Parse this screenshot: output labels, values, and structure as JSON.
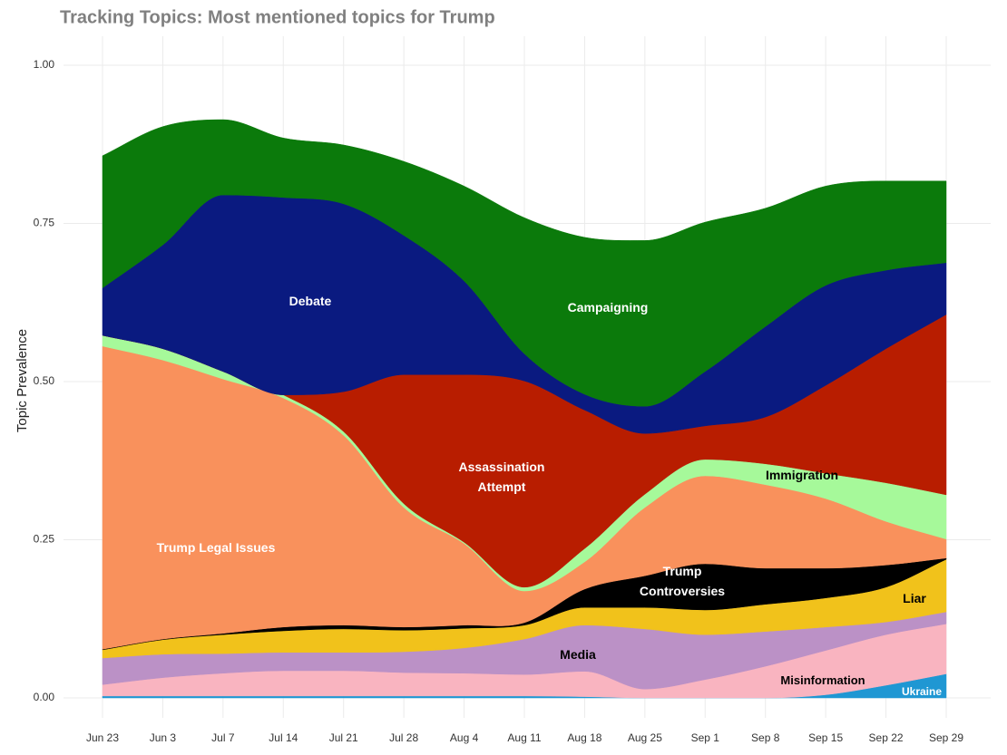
{
  "chart_data": {
    "type": "stacked-area",
    "title": "Tracking Topics: Most mentioned topics for Trump",
    "y_label": "Topic Prevalence",
    "categories": [
      "Jun 23",
      "Jun 3",
      "Jul 7",
      "Jul 14",
      "Jul 21",
      "Jul 28",
      "Aug 4",
      "Aug 11",
      "Aug 18",
      "Aug 25",
      "Sep 1",
      "Sep 8",
      "Sep 15",
      "Sep 22",
      "Sep 29"
    ],
    "ylim": [
      0,
      1
    ],
    "yticks": [
      {
        "value": 0,
        "label": "0.00"
      },
      {
        "value": 0.25,
        "label": "0.25"
      },
      {
        "value": 0.5,
        "label": "0.50"
      },
      {
        "value": 0.75,
        "label": "0.75"
      },
      {
        "value": 1,
        "label": "1.00"
      }
    ],
    "grid": true,
    "series": [
      {
        "name": "Ukraine",
        "color": "#1f97d3",
        "values": [
          0.003,
          0.003,
          0.003,
          0.003,
          0.003,
          0.003,
          0.003,
          0.003,
          0.002,
          0,
          0,
          0,
          0.005,
          0.02,
          0.038
        ]
      },
      {
        "name": "Misinformation",
        "color": "#f9b4c0",
        "values": [
          0.018,
          0.029,
          0.036,
          0.04,
          0.04,
          0.037,
          0.036,
          0.034,
          0.04,
          0.014,
          0.029,
          0.05,
          0.07,
          0.08,
          0.079
        ]
      },
      {
        "name": "Media",
        "color": "#bb91c6",
        "values": [
          0.042,
          0.037,
          0.031,
          0.029,
          0.029,
          0.033,
          0.04,
          0.056,
          0.073,
          0.095,
          0.071,
          0.055,
          0.037,
          0.02,
          0.019
        ]
      },
      {
        "name": "Liar",
        "color": "#f1c21b",
        "values": [
          0.013,
          0.023,
          0.03,
          0.034,
          0.037,
          0.034,
          0.031,
          0.022,
          0.028,
          0.034,
          0.039,
          0.043,
          0.046,
          0.055,
          0.083
        ]
      },
      {
        "name": "Trump Controversies",
        "color": "#000000",
        "values": [
          0.001,
          0.001,
          0.002,
          0.006,
          0.006,
          0.005,
          0.005,
          0.004,
          0.029,
          0.05,
          0.073,
          0.057,
          0.047,
          0.035,
          0.002
        ]
      },
      {
        "name": "Trump Legal Issues",
        "color": "#f9915c",
        "values": [
          0.479,
          0.441,
          0.402,
          0.362,
          0.3,
          0.189,
          0.129,
          0.05,
          0.043,
          0.108,
          0.139,
          0.132,
          0.11,
          0.069,
          0.03
        ]
      },
      {
        "name": "Immigration",
        "color": "#a6f99a",
        "values": [
          0.017,
          0.018,
          0.012,
          0.005,
          0.006,
          0.006,
          0.002,
          0.006,
          0.021,
          0.021,
          0.026,
          0.033,
          0.04,
          0.061,
          0.07
        ]
      },
      {
        "name": "Assassination Attempt",
        "color": "#b81d00",
        "values": [
          0,
          0,
          0,
          0,
          0.063,
          0.204,
          0.265,
          0.326,
          0.219,
          0.096,
          0.053,
          0.074,
          0.139,
          0.212,
          0.285
        ]
      },
      {
        "name": "Debate",
        "color": "#0a1a80",
        "values": [
          0.075,
          0.164,
          0.279,
          0.312,
          0.297,
          0.22,
          0.148,
          0.043,
          0.025,
          0.043,
          0.086,
          0.143,
          0.158,
          0.124,
          0.082
        ]
      },
      {
        "name": "Campaigning",
        "color": "#0b7a0b",
        "values": [
          0.209,
          0.187,
          0.119,
          0.094,
          0.093,
          0.117,
          0.15,
          0.215,
          0.248,
          0.262,
          0.236,
          0.187,
          0.157,
          0.141,
          0.129
        ]
      }
    ]
  }
}
